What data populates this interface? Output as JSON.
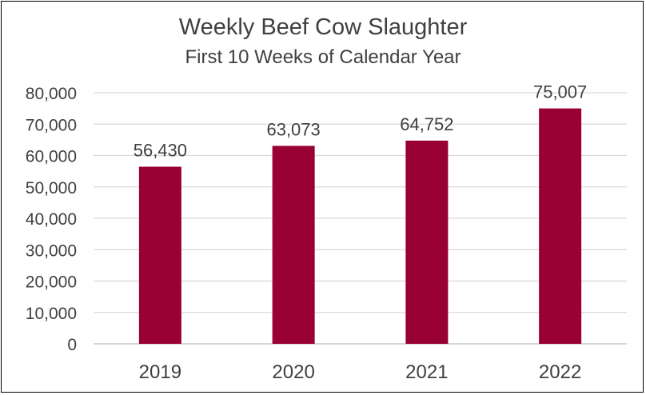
{
  "chart_data": {
    "type": "bar",
    "title": "Weekly Beef Cow Slaughter",
    "subtitle": "First 10 Weeks of Calendar Year",
    "categories": [
      "2019",
      "2020",
      "2021",
      "2022"
    ],
    "values": [
      56430,
      63073,
      64752,
      75007
    ],
    "data_labels": [
      "56,430",
      "63,073",
      "64,752",
      "75,007"
    ],
    "y_ticks": [
      "0",
      "10,000",
      "20,000",
      "30,000",
      "40,000",
      "50,000",
      "60,000",
      "70,000",
      "80,000"
    ],
    "ylim": [
      0,
      80000
    ],
    "y_step": 10000,
    "grid": true,
    "legend": "none",
    "bar_color": "#990033",
    "grid_color": "#d9d9d9",
    "text_color": "#404040"
  }
}
